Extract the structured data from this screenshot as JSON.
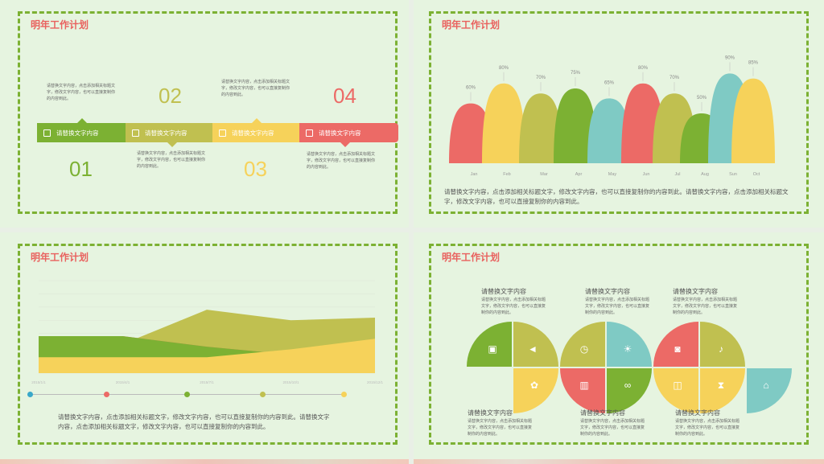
{
  "slides": {
    "title": "明年工作计划",
    "s1": {
      "steps": [
        {
          "num": "01",
          "label": "请替换文字内容",
          "color": "#7cb133",
          "numColor": "#7cb133",
          "icon": "document-icon"
        },
        {
          "num": "02",
          "label": "请替换文字内容",
          "color": "#c0c050",
          "numColor": "#c0c050",
          "icon": "trash-icon"
        },
        {
          "num": "03",
          "label": "请替换文字内容",
          "color": "#f6d25a",
          "numColor": "#f6d25a",
          "icon": "note-icon"
        },
        {
          "num": "04",
          "label": "请替换文字内容",
          "color": "#ec6a66",
          "numColor": "#ec6a66",
          "icon": "chat-icon"
        }
      ],
      "desc": "请替换文字内容，点击添加相关标题文字，修改文字内容，也可以直接复制你的内容到此。"
    },
    "s2": {
      "caption": "请替换文字内容，点击添加相关标题文字，修改文字内容，也可以直接复制你的内容到此。请替换文字内容，点击添加相关标题文字，修改文字内容，也可以直接复制你的内容到此。"
    },
    "s3": {
      "caption": "请替换文字内容，点击添加相关标题文字，修改文字内容，也可以直接复制你的内容到此。请替换文字内容，点击添加相关标题文字，修改文字内容，也可以直接复制你的内容到此。"
    },
    "s4": {
      "heading": "请替换文字内容",
      "desc": "请替换文字内容，点击添加相关标题文字，修改文字内容，也可以直接复制你的内容到此。"
    }
  },
  "colors": {
    "green": "#7cb133",
    "olive": "#c0c050",
    "yellow": "#f6d25a",
    "red": "#ec6a66",
    "teal": "#7fcac4"
  },
  "chart_data": [
    {
      "type": "area",
      "title": "",
      "categories": [
        "Jan",
        "Feb",
        "Mar",
        "Apr",
        "May",
        "Jun",
        "Jul",
        "Aug",
        "Sun",
        "Oct"
      ],
      "values": [
        60,
        80,
        70,
        75,
        65,
        80,
        70,
        50,
        90,
        85
      ],
      "value_labels": [
        "60%",
        "80%",
        "70%",
        "75%",
        "65%",
        "80%",
        "70%",
        "50%",
        "90%",
        "85%"
      ],
      "colors": [
        "#ec6a66",
        "#f6d25a",
        "#c0c050",
        "#7cb133",
        "#7fcac4",
        "#ec6a66",
        "#c0c050",
        "#7cb133",
        "#7fcac4",
        "#f6d25a"
      ]
    },
    {
      "type": "area",
      "title": "",
      "x": [
        "2015/1/1",
        "2015/4/1",
        "2015/7/1",
        "2015/10/1",
        "2015/12/1"
      ],
      "series": [
        {
          "color": "#c0c050",
          "values": [
            20,
            22,
            48,
            40,
            42
          ]
        },
        {
          "color": "#ec6a66",
          "values": [
            22,
            28,
            20,
            14,
            16
          ]
        },
        {
          "color": "#7cb133",
          "values": [
            28,
            28,
            20,
            14,
            16
          ]
        },
        {
          "color": "#f6d25a",
          "values": [
            12,
            12,
            12,
            18,
            26
          ]
        }
      ],
      "ylim": [
        0,
        70
      ]
    }
  ]
}
